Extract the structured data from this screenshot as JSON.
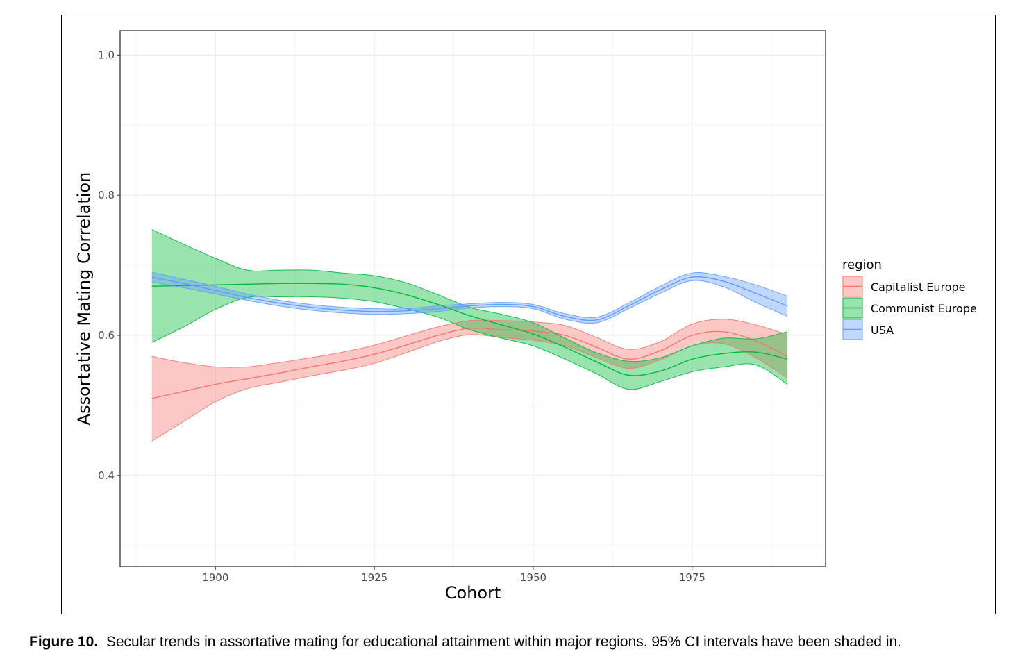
{
  "caption": {
    "label": "Figure 10.",
    "text": "Secular trends in assortative mating for educational attainment within major regions. 95% CI intervals have been shaded in."
  },
  "chart_data": {
    "type": "line",
    "xlabel": "Cohort",
    "ylabel": "Assortative Mating Correlation",
    "xlim": [
      1885,
      1996
    ],
    "ylim": [
      0.27,
      1.035
    ],
    "x_ticks": [
      1900,
      1925,
      1950,
      1975
    ],
    "y_ticks": [
      0.4,
      0.6,
      0.8,
      1.0
    ],
    "x_tick_labels": [
      "1900",
      "1925",
      "1950",
      "1975"
    ],
    "y_tick_labels": [
      "0.4",
      "0.6",
      "0.8",
      "1.0"
    ],
    "grid": true,
    "legend": {
      "title": "region",
      "placement": "right"
    },
    "series": [
      {
        "name": "Capitalist Europe",
        "color": "#F8766D",
        "x": [
          1890,
          1895,
          1900,
          1905,
          1910,
          1915,
          1920,
          1925,
          1930,
          1935,
          1940,
          1945,
          1950,
          1955,
          1960,
          1965,
          1970,
          1975,
          1980,
          1985,
          1990
        ],
        "y": [
          0.51,
          0.52,
          0.53,
          0.538,
          0.546,
          0.555,
          0.563,
          0.573,
          0.586,
          0.6,
          0.61,
          0.608,
          0.606,
          0.6,
          0.583,
          0.566,
          0.578,
          0.6,
          0.605,
          0.592,
          0.57
        ],
        "lower": [
          0.449,
          0.477,
          0.505,
          0.524,
          0.533,
          0.542,
          0.55,
          0.56,
          0.575,
          0.591,
          0.601,
          0.597,
          0.593,
          0.585,
          0.568,
          0.553,
          0.565,
          0.585,
          0.588,
          0.568,
          0.539
        ],
        "upper": [
          0.57,
          0.561,
          0.555,
          0.555,
          0.561,
          0.568,
          0.576,
          0.586,
          0.599,
          0.612,
          0.621,
          0.621,
          0.619,
          0.614,
          0.597,
          0.58,
          0.591,
          0.616,
          0.623,
          0.615,
          0.601
        ]
      },
      {
        "name": "Communist Europe",
        "color": "#00BA38",
        "x": [
          1890,
          1895,
          1900,
          1905,
          1910,
          1915,
          1920,
          1925,
          1930,
          1935,
          1940,
          1945,
          1950,
          1955,
          1960,
          1965,
          1970,
          1975,
          1980,
          1985,
          1990
        ],
        "y": [
          0.67,
          0.671,
          0.672,
          0.673,
          0.674,
          0.674,
          0.673,
          0.668,
          0.658,
          0.644,
          0.628,
          0.615,
          0.602,
          0.583,
          0.562,
          0.543,
          0.549,
          0.566,
          0.574,
          0.576,
          0.566
        ],
        "lower": [
          0.59,
          0.612,
          0.637,
          0.654,
          0.655,
          0.655,
          0.653,
          0.648,
          0.638,
          0.626,
          0.608,
          0.596,
          0.585,
          0.566,
          0.545,
          0.523,
          0.534,
          0.548,
          0.555,
          0.558,
          0.53
        ],
        "upper": [
          0.751,
          0.73,
          0.71,
          0.693,
          0.693,
          0.693,
          0.689,
          0.685,
          0.675,
          0.658,
          0.64,
          0.63,
          0.618,
          0.596,
          0.575,
          0.563,
          0.568,
          0.585,
          0.596,
          0.595,
          0.605
        ]
      },
      {
        "name": "USA",
        "color": "#619CFF",
        "x": [
          1890,
          1895,
          1900,
          1905,
          1910,
          1915,
          1920,
          1925,
          1930,
          1935,
          1940,
          1945,
          1950,
          1955,
          1960,
          1965,
          1970,
          1975,
          1980,
          1985,
          1990
        ],
        "y": [
          0.683,
          0.674,
          0.664,
          0.654,
          0.646,
          0.64,
          0.636,
          0.634,
          0.635,
          0.638,
          0.642,
          0.644,
          0.641,
          0.627,
          0.622,
          0.642,
          0.665,
          0.683,
          0.677,
          0.66,
          0.642
        ],
        "lower": [
          0.676,
          0.668,
          0.659,
          0.65,
          0.642,
          0.636,
          0.632,
          0.63,
          0.631,
          0.634,
          0.639,
          0.641,
          0.638,
          0.623,
          0.618,
          0.638,
          0.66,
          0.678,
          0.669,
          0.647,
          0.627
        ],
        "upper": [
          0.69,
          0.68,
          0.67,
          0.659,
          0.65,
          0.644,
          0.64,
          0.638,
          0.638,
          0.642,
          0.645,
          0.647,
          0.644,
          0.631,
          0.626,
          0.646,
          0.67,
          0.689,
          0.684,
          0.672,
          0.656
        ]
      }
    ]
  }
}
